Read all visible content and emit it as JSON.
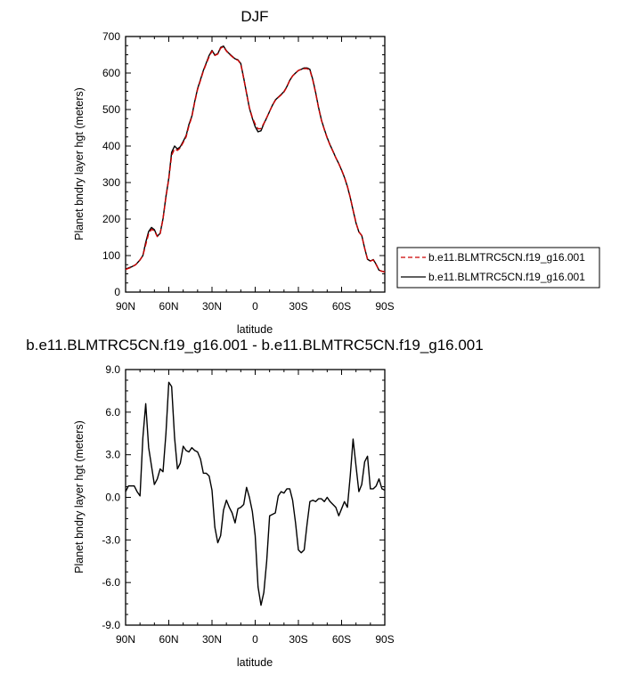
{
  "charts": [
    {
      "title": "DJF",
      "xlabel": "latitude",
      "ylabel": "Planet bndry layer hgt (meters)",
      "ytick_labels": [
        "0",
        "100",
        "200",
        "300",
        "400",
        "500",
        "600",
        "700"
      ],
      "xtick_labels": [
        "90N",
        "60N",
        "30N",
        "0",
        "30S",
        "60S",
        "90S"
      ],
      "legend": [
        "b.e11.BLMTRC5CN.f19_g16.001",
        "b.e11.BLMTRC5CN.f19_g16.001"
      ]
    },
    {
      "title": "b.e11.BLMTRC5CN.f19_g16.001 - b.e11.BLMTRC5CN.f19_g16.001",
      "xlabel": "latitude",
      "ylabel": "Planet bndry layer hgt (meters)",
      "ytick_labels": [
        "-9.0",
        "-6.0",
        "-3.0",
        "0.0",
        "3.0",
        "6.0",
        "9.0"
      ],
      "xtick_labels": [
        "90N",
        "60N",
        "30N",
        "0",
        "30S",
        "60S",
        "90S"
      ]
    }
  ],
  "chart_data": [
    {
      "type": "line",
      "title": "DJF",
      "xlabel": "latitude",
      "ylabel": "Planet bndry layer hgt (meters)",
      "xlim": [
        -90,
        90
      ],
      "ylim": [
        0,
        700
      ],
      "x_direction": "90N to 90S",
      "legend_position": "right",
      "series": [
        {
          "name": "b.e11.BLMTRC5CN.f19_g16.001",
          "style": "dashed",
          "color": "#cc0000",
          "points": [
            [
              -90,
              62
            ],
            [
              -86,
              68
            ],
            [
              -83,
              75
            ],
            [
              -80,
              88
            ],
            [
              -78,
              100
            ],
            [
              -76,
              130
            ],
            [
              -74,
              160
            ],
            [
              -72,
              172
            ],
            [
              -70,
              168
            ],
            [
              -68,
              152
            ],
            [
              -66,
              160
            ],
            [
              -64,
              200
            ],
            [
              -62,
              260
            ],
            [
              -60,
              310
            ],
            [
              -58,
              375
            ],
            [
              -56,
              392
            ],
            [
              -54,
              388
            ],
            [
              -52,
              395
            ],
            [
              -50,
              410
            ],
            [
              -48,
              425
            ],
            [
              -46,
              455
            ],
            [
              -44,
              480
            ],
            [
              -42,
              520
            ],
            [
              -40,
              555
            ],
            [
              -38,
              580
            ],
            [
              -36,
              605
            ],
            [
              -34,
              625
            ],
            [
              -32,
              645
            ],
            [
              -30,
              660
            ],
            [
              -28,
              648
            ],
            [
              -26,
              652
            ],
            [
              -24,
              668
            ],
            [
              -22,
              672
            ],
            [
              -20,
              660
            ],
            [
              -18,
              652
            ],
            [
              -16,
              645
            ],
            [
              -14,
              638
            ],
            [
              -12,
              635
            ],
            [
              -10,
              625
            ],
            [
              -8,
              585
            ],
            [
              -6,
              545
            ],
            [
              -4,
              505
            ],
            [
              -2,
              478
            ],
            [
              0,
              460
            ],
            [
              2,
              447
            ],
            [
              4,
              448
            ],
            [
              6,
              462
            ],
            [
              8,
              478
            ],
            [
              10,
              495
            ],
            [
              12,
              512
            ],
            [
              14,
              525
            ],
            [
              16,
              533
            ],
            [
              18,
              540
            ],
            [
              20,
              548
            ],
            [
              22,
              562
            ],
            [
              24,
              580
            ],
            [
              26,
              592
            ],
            [
              28,
              600
            ],
            [
              30,
              607
            ],
            [
              32,
              610
            ],
            [
              34,
              612
            ],
            [
              36,
              612
            ],
            [
              38,
              608
            ],
            [
              40,
              580
            ],
            [
              42,
              545
            ],
            [
              44,
              505
            ],
            [
              46,
              470
            ],
            [
              48,
              445
            ],
            [
              50,
              422
            ],
            [
              52,
              402
            ],
            [
              54,
              385
            ],
            [
              56,
              368
            ],
            [
              58,
              352
            ],
            [
              60,
              335
            ],
            [
              62,
              315
            ],
            [
              64,
              290
            ],
            [
              66,
              260
            ],
            [
              68,
              225
            ],
            [
              70,
              190
            ],
            [
              72,
              165
            ],
            [
              74,
              155
            ],
            [
              76,
              120
            ],
            [
              78,
              90
            ],
            [
              80,
              85
            ],
            [
              82,
              88
            ],
            [
              84,
              75
            ],
            [
              86,
              60
            ],
            [
              88,
              57
            ],
            [
              90,
              55
            ]
          ]
        },
        {
          "name": "b.e11.BLMTRC5CN.f19_g16.001",
          "style": "solid",
          "color": "#000000",
          "points": [
            [
              -90,
              63
            ],
            [
              -86,
              69
            ],
            [
              -83,
              75
            ],
            [
              -80,
              88
            ],
            [
              -78,
              100
            ],
            [
              -76,
              136
            ],
            [
              -74,
              166
            ],
            [
              -72,
              177
            ],
            [
              -70,
              171
            ],
            [
              -68,
              153
            ],
            [
              -66,
              161
            ],
            [
              -64,
              201
            ],
            [
              -62,
              262
            ],
            [
              -60,
              312
            ],
            [
              -58,
              383
            ],
            [
              -56,
              400
            ],
            [
              -54,
              392
            ],
            [
              -52,
              398
            ],
            [
              -50,
              413
            ],
            [
              -48,
              428
            ],
            [
              -46,
              459
            ],
            [
              -44,
              482
            ],
            [
              -42,
              522
            ],
            [
              -40,
              557
            ],
            [
              -38,
              582
            ],
            [
              -36,
              607
            ],
            [
              -34,
              627
            ],
            [
              -32,
              648
            ],
            [
              -30,
              662
            ],
            [
              -28,
              649
            ],
            [
              -26,
              653
            ],
            [
              -24,
              670
            ],
            [
              -22,
              674
            ],
            [
              -20,
              661
            ],
            [
              -18,
              653
            ],
            [
              -16,
              646
            ],
            [
              -14,
              639
            ],
            [
              -12,
              636
            ],
            [
              -10,
              626
            ],
            [
              -8,
              586
            ],
            [
              -6,
              545
            ],
            [
              -4,
              504
            ],
            [
              -2,
              476
            ],
            [
              0,
              453
            ],
            [
              2,
              439
            ],
            [
              4,
              442
            ],
            [
              6,
              461
            ],
            [
              8,
              477
            ],
            [
              10,
              495
            ],
            [
              12,
              512
            ],
            [
              14,
              526
            ],
            [
              16,
              534
            ],
            [
              18,
              541
            ],
            [
              20,
              549
            ],
            [
              22,
              563
            ],
            [
              24,
              580
            ],
            [
              26,
              592
            ],
            [
              28,
              600
            ],
            [
              30,
              607
            ],
            [
              32,
              610
            ],
            [
              34,
              614
            ],
            [
              36,
              614
            ],
            [
              38,
              610
            ],
            [
              40,
              582
            ],
            [
              42,
              546
            ],
            [
              44,
              506
            ],
            [
              46,
              471
            ],
            [
              48,
              446
            ],
            [
              50,
              423
            ],
            [
              52,
              403
            ],
            [
              54,
              386
            ],
            [
              56,
              368
            ],
            [
              58,
              352
            ],
            [
              60,
              334
            ],
            [
              62,
              314
            ],
            [
              64,
              289
            ],
            [
              66,
              259
            ],
            [
              68,
              224
            ],
            [
              70,
              189
            ],
            [
              72,
              165
            ],
            [
              74,
              155
            ],
            [
              76,
              120
            ],
            [
              78,
              90
            ],
            [
              80,
              85
            ],
            [
              82,
              89
            ],
            [
              84,
              76
            ],
            [
              86,
              60
            ],
            [
              88,
              57
            ],
            [
              90,
              55
            ]
          ]
        }
      ]
    },
    {
      "type": "line",
      "title": "b.e11.BLMTRC5CN.f19_g16.001 - b.e11.BLMTRC5CN.f19_g16.001",
      "xlabel": "latitude",
      "ylabel": "Planet bndry layer hgt (meters)",
      "xlim": [
        -90,
        90
      ],
      "ylim": [
        -9,
        9
      ],
      "x_direction": "90N to 90S",
      "series": [
        {
          "style": "solid",
          "color": "#000000",
          "points": [
            [
              -90,
              0.4
            ],
            [
              -88,
              0.8
            ],
            [
              -86,
              0.8
            ],
            [
              -84,
              0.8
            ],
            [
              -82,
              0.4
            ],
            [
              -80,
              0.1
            ],
            [
              -78,
              4.2
            ],
            [
              -76,
              6.6
            ],
            [
              -74,
              3.5
            ],
            [
              -72,
              2.2
            ],
            [
              -70,
              0.9
            ],
            [
              -68,
              1.3
            ],
            [
              -66,
              2.0
            ],
            [
              -64,
              1.8
            ],
            [
              -62,
              4.5
            ],
            [
              -60,
              8.1
            ],
            [
              -58,
              7.8
            ],
            [
              -56,
              4.2
            ],
            [
              -54,
              2.0
            ],
            [
              -52,
              2.4
            ],
            [
              -50,
              3.6
            ],
            [
              -48,
              3.3
            ],
            [
              -46,
              3.2
            ],
            [
              -44,
              3.5
            ],
            [
              -42,
              3.3
            ],
            [
              -40,
              3.2
            ],
            [
              -38,
              2.7
            ],
            [
              -36,
              1.7
            ],
            [
              -34,
              1.7
            ],
            [
              -32,
              1.5
            ],
            [
              -30,
              0.5
            ],
            [
              -28,
              -2.1
            ],
            [
              -26,
              -3.2
            ],
            [
              -24,
              -2.7
            ],
            [
              -22,
              -0.9
            ],
            [
              -20,
              -0.2
            ],
            [
              -18,
              -0.7
            ],
            [
              -16,
              -1.1
            ],
            [
              -14,
              -1.8
            ],
            [
              -12,
              -0.8
            ],
            [
              -10,
              -0.7
            ],
            [
              -8,
              -0.5
            ],
            [
              -6,
              0.7
            ],
            [
              -4,
              0.0
            ],
            [
              -2,
              -1.0
            ],
            [
              0,
              -2.7
            ],
            [
              2,
              -6.3
            ],
            [
              4,
              -7.6
            ],
            [
              6,
              -6.7
            ],
            [
              8,
              -4.5
            ],
            [
              10,
              -1.3
            ],
            [
              12,
              -1.2
            ],
            [
              14,
              -1.1
            ],
            [
              16,
              0.1
            ],
            [
              18,
              0.4
            ],
            [
              20,
              0.3
            ],
            [
              22,
              0.6
            ],
            [
              24,
              0.6
            ],
            [
              26,
              -0.2
            ],
            [
              28,
              -1.8
            ],
            [
              30,
              -3.7
            ],
            [
              32,
              -3.9
            ],
            [
              34,
              -3.7
            ],
            [
              36,
              -1.9
            ],
            [
              38,
              -0.3
            ],
            [
              40,
              -0.2
            ],
            [
              42,
              -0.3
            ],
            [
              44,
              -0.1
            ],
            [
              46,
              -0.1
            ],
            [
              48,
              -0.3
            ],
            [
              50,
              0.0
            ],
            [
              52,
              -0.3
            ],
            [
              54,
              -0.5
            ],
            [
              56,
              -0.7
            ],
            [
              58,
              -1.3
            ],
            [
              60,
              -0.8
            ],
            [
              62,
              -0.3
            ],
            [
              64,
              -0.7
            ],
            [
              66,
              1.5
            ],
            [
              68,
              4.1
            ],
            [
              70,
              2.2
            ],
            [
              72,
              0.4
            ],
            [
              74,
              0.9
            ],
            [
              76,
              2.5
            ],
            [
              78,
              2.9
            ],
            [
              80,
              0.6
            ],
            [
              82,
              0.6
            ],
            [
              84,
              0.8
            ],
            [
              86,
              1.3
            ],
            [
              88,
              0.6
            ],
            [
              90,
              0.5
            ]
          ]
        }
      ]
    }
  ]
}
